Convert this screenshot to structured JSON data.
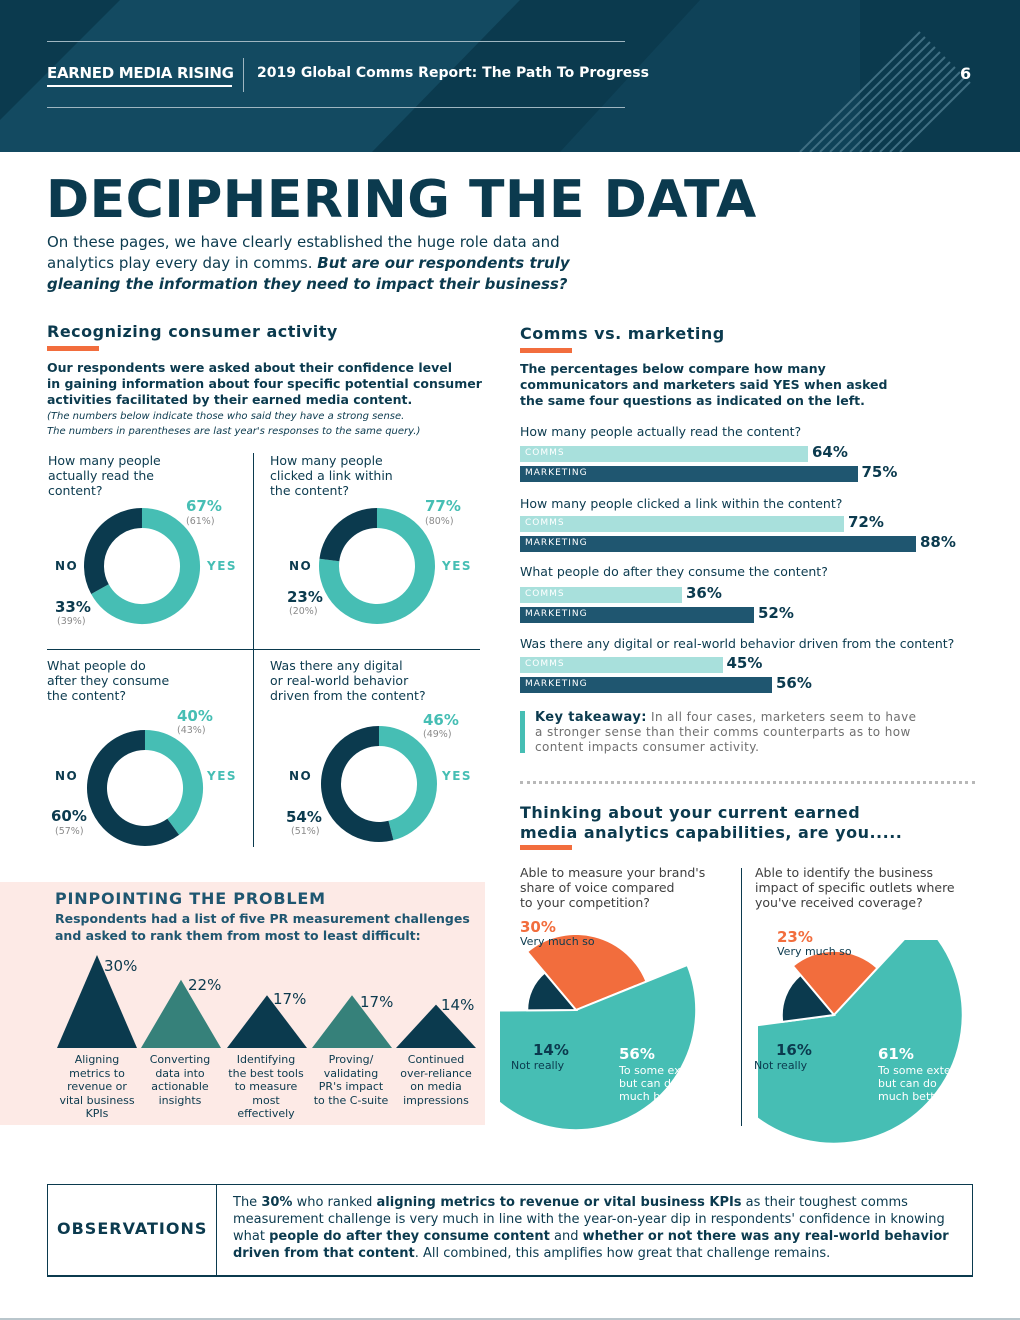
{
  "header": {
    "logo_text": "EARNED MEDIA RISING",
    "report_title": "2019 Global Comms Report: The Path To Progress",
    "page_number": "6"
  },
  "title": "DECIPHERING THE DATA",
  "intro": {
    "plain": "On these pages, we have clearly established the huge role data and analytics play every day in comms. ",
    "emphasis": "But are our respondents truly gleaning the information they need to impact their business?"
  },
  "consumer_activity": {
    "heading": "Recognizing consumer activity",
    "desc_line1": "Our respondents were asked about their confidence level",
    "desc_line2": "in gaining information about four specific potential consumer",
    "desc_line3": "activities facilitated by their earned media content.",
    "note_line1": "(The numbers below indicate those who said they have a strong sense.",
    "note_line2": "The numbers in parentheses are last year's responses to the same query.)",
    "yes_label": "YES",
    "no_label": "NO",
    "donuts": [
      {
        "q1": "How many people",
        "q2": "actually read the",
        "q3": "content?",
        "yes": "67%",
        "yes_prev": "(61%)",
        "no": "33%",
        "no_prev": "(39%)",
        "yes_value": 67
      },
      {
        "q1": "How many people",
        "q2": "clicked a link within",
        "q3": "the content?",
        "yes": "77%",
        "yes_prev": "(80%)",
        "no": "23%",
        "no_prev": "(20%)",
        "yes_value": 77
      },
      {
        "q1": "What people do",
        "q2": "after they consume",
        "q3": "the content?",
        "yes": "40%",
        "yes_prev": "(43%)",
        "no": "60%",
        "no_prev": "(57%)",
        "yes_value": 40
      },
      {
        "q1": "Was there any digital",
        "q2": "or real-world behavior",
        "q3": "driven from the content?",
        "yes": "46%",
        "yes_prev": "(49%)",
        "no": "54%",
        "no_prev": "(51%)",
        "yes_value": 46
      }
    ]
  },
  "comms_vs_marketing": {
    "heading": "Comms vs. marketing",
    "desc_line1": "The percentages below compare how many",
    "desc_line2": "communicators and marketers said YES when asked",
    "desc_line3": "the same four questions as indicated on the left.",
    "comms_label": "COMMS",
    "marketing_label": "MARKETING",
    "rows": [
      {
        "question": "How many people actually read the content?",
        "comms": "64%",
        "marketing": "75%",
        "comms_value": 64,
        "marketing_value": 75
      },
      {
        "question": "How many people clicked a link within the content?",
        "comms": "72%",
        "marketing": "88%",
        "comms_value": 72,
        "marketing_value": 88
      },
      {
        "question": "What people do after they consume the content?",
        "comms": "36%",
        "marketing": "52%",
        "comms_value": 36,
        "marketing_value": 52
      },
      {
        "question": "Was there any digital or real-world behavior driven from the content?",
        "comms": "45%",
        "marketing": "56%",
        "comms_value": 45,
        "marketing_value": 56
      }
    ],
    "takeaway_label": "Key takeaway:",
    "takeaway_l1": " In all four cases, marketers seem to have",
    "takeaway_l2": "a stronger sense than their comms counterparts as to how",
    "takeaway_l3": "content impacts consumer activity."
  },
  "analytics": {
    "heading_l1": "Thinking about your current earned",
    "heading_l2": "media analytics capabilities, are you.....",
    "pies": [
      {
        "q1": "Able to measure your brand's",
        "q2": "share of voice compared",
        "q3": "to your competition?",
        "very_pct": "30%",
        "very_label": "Very much so",
        "not_pct": "14%",
        "not_label": "Not really",
        "some_pct": "56%",
        "some_l1": "To some extent,",
        "some_l2": "but can do",
        "some_l3": "much better",
        "very_value": 30,
        "not_value": 14,
        "some_value": 56
      },
      {
        "q1": "Able to identify the business",
        "q2": "impact of specific outlets where",
        "q3": "you've received coverage?",
        "very_pct": "23%",
        "very_label": "Very much so",
        "not_pct": "16%",
        "not_label": "Not really",
        "some_pct": "61%",
        "some_l1": "To some extent,",
        "some_l2": "but can do",
        "some_l3": "much better",
        "very_value": 23,
        "not_value": 16,
        "some_value": 61
      }
    ]
  },
  "pinpoint": {
    "heading": "PINPOINTING THE PROBLEM",
    "sub_l1": "Respondents had a list of five PR measurement challenges",
    "sub_l2": "and asked to rank them from most to least difficult:",
    "items": [
      {
        "pct": "30%",
        "value": 30,
        "l1": "Aligning",
        "l2": "metrics to",
        "l3": "revenue or",
        "l4": "vital business",
        "l5": "KPIs"
      },
      {
        "pct": "22%",
        "value": 22,
        "l1": "Converting",
        "l2": "data into",
        "l3": "actionable",
        "l4": "insights",
        "l5": ""
      },
      {
        "pct": "17%",
        "value": 17,
        "l1": "Identifying",
        "l2": "the best tools",
        "l3": "to measure",
        "l4": "most",
        "l5": "effectively"
      },
      {
        "pct": "17%",
        "value": 17,
        "l1": "Proving/",
        "l2": "validating",
        "l3": "PR's impact",
        "l4": "to the C-suite",
        "l5": ""
      },
      {
        "pct": "14%",
        "value": 14,
        "l1": "Continued",
        "l2": "over-reliance",
        "l3": "on media",
        "l4": "impressions",
        "l5": ""
      }
    ]
  },
  "observations": {
    "label": "OBSERVATIONS",
    "t1": "The ",
    "b1": "30%",
    "t2": " who ranked ",
    "b2": "aligning metrics to revenue or vital business KPIs",
    "t3": " as their toughest comms measurement challenge is very much in line with the year-on-year dip in respondents' confidence in knowing what ",
    "b3": "people do after they consume content",
    "t4": " and ",
    "b4": "whether or not there was any real-world behavior driven from that content",
    "t5": ". All combined, this amplifies how great that challenge remains."
  },
  "colors": {
    "dark": "#0b3a4e",
    "teal": "#46beb4",
    "light_teal": "#a8e0dc",
    "orange": "#f26d3d",
    "pink_bg": "#fdeae6",
    "triangle_teal": "#36817a"
  }
}
